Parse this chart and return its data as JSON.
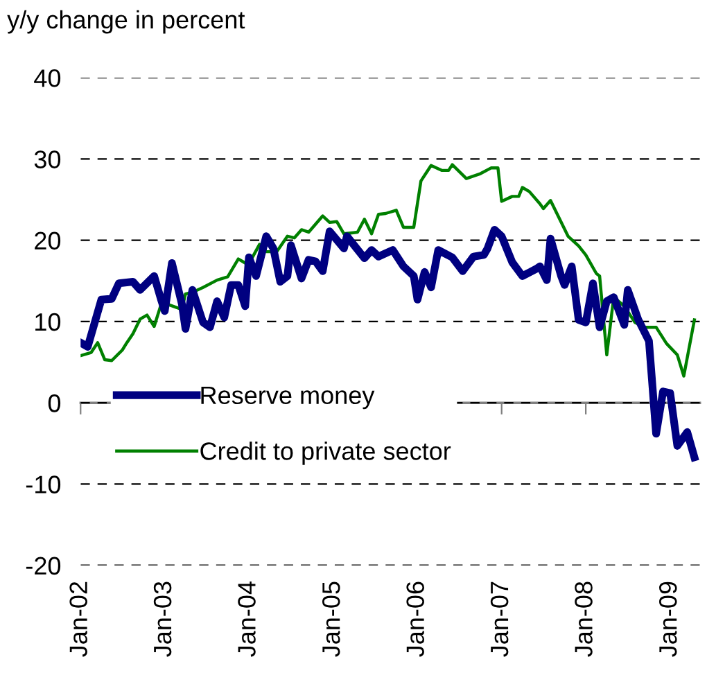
{
  "chart_data": {
    "type": "line",
    "ylabel": "y/y change in percent",
    "xlim": [
      "2002-01-01",
      "2009-05-10"
    ],
    "xticks": [
      {
        "value": "2002-01-01",
        "label": "Jan-02"
      },
      {
        "value": "2003-01-01",
        "label": "Jan-03"
      },
      {
        "value": "2004-01-01",
        "label": "Jan-04"
      },
      {
        "value": "2005-01-01",
        "label": "Jan-05"
      },
      {
        "value": "2006-01-01",
        "label": "Jan-06"
      },
      {
        "value": "2007-01-01",
        "label": "Jan-07"
      },
      {
        "value": "2008-01-01",
        "label": "Jan-08"
      },
      {
        "value": "2009-01-01",
        "label": "Jan-09"
      }
    ],
    "ylim": [
      -20,
      40
    ],
    "yticks": [
      -20,
      -10,
      0,
      10,
      20,
      30,
      40
    ],
    "grid": "y",
    "legend": "bottom left",
    "marker": "none",
    "line_style": "solid",
    "series": [
      {
        "name": "Reserve money",
        "color": "#000080",
        "x": [
          "2002-01-01",
          "2002-02-01",
          "2002-04-01",
          "2002-05-16",
          "2002-06-16",
          "2002-08-16",
          "2002-09-16",
          "2002-11-16",
          "2002-12-16",
          "2003-01-01",
          "2003-02-01",
          "2003-03-16",
          "2003-04-01",
          "2003-05-01",
          "2003-06-16",
          "2003-07-16",
          "2003-08-16",
          "2003-09-16",
          "2003-10-16",
          "2003-11-16",
          "2003-12-16",
          "2004-01-01",
          "2004-02-01",
          "2004-03-16",
          "2004-04-16",
          "2004-05-16",
          "2004-06-16",
          "2004-07-01",
          "2004-08-16",
          "2004-09-16",
          "2004-10-16",
          "2004-11-16",
          "2004-12-16",
          "2005-02-16",
          "2005-03-01",
          "2005-05-16",
          "2005-06-16",
          "2005-07-16",
          "2005-09-16",
          "2005-11-01",
          "2005-12-16",
          "2006-01-01",
          "2006-02-01",
          "2006-03-01",
          "2006-04-01",
          "2006-06-01",
          "2006-07-16",
          "2006-09-01",
          "2006-10-16",
          "2006-11-01",
          "2006-12-01",
          "2007-01-01",
          "2007-02-16",
          "2007-04-01",
          "2007-06-01",
          "2007-06-16",
          "2007-07-16",
          "2007-08-01",
          "2007-09-16",
          "2007-10-01",
          "2007-11-01",
          "2007-12-01",
          "2008-01-01",
          "2008-02-01",
          "2008-03-01",
          "2008-04-01",
          "2008-05-01",
          "2008-06-16",
          "2008-07-01",
          "2008-08-16",
          "2008-10-01",
          "2008-11-01",
          "2008-12-01",
          "2009-01-01",
          "2009-02-01",
          "2009-03-16",
          "2009-04-16"
        ],
        "values": [
          7.4,
          6.9,
          12.7,
          12.8,
          14.7,
          14.9,
          13.9,
          15.6,
          12.7,
          11.3,
          17.2,
          12.2,
          9.1,
          13.9,
          9.9,
          9.3,
          12.5,
          10.5,
          14.5,
          14.5,
          11.9,
          17.9,
          15.6,
          20.5,
          19.0,
          14.9,
          15.6,
          19.4,
          15.3,
          17.6,
          17.4,
          16.2,
          21.1,
          19.0,
          20.5,
          17.8,
          18.8,
          18.0,
          18.8,
          16.8,
          15.6,
          12.7,
          16.1,
          14.2,
          18.8,
          17.9,
          16.2,
          18.0,
          18.2,
          19.0,
          21.3,
          20.5,
          17.3,
          15.6,
          16.5,
          16.8,
          15.1,
          20.2,
          15.6,
          14.5,
          16.8,
          10.2,
          9.9,
          14.7,
          9.3,
          12.5,
          13.0,
          9.6,
          13.9,
          10.2,
          7.6,
          -3.8,
          1.4,
          1.2,
          -5.3,
          -3.6,
          -6.7
        ]
      },
      {
        "name": "Credit to private sector",
        "color": "#008000",
        "x": [
          "2002-01-01",
          "2002-02-16",
          "2002-03-16",
          "2002-04-16",
          "2002-05-16",
          "2002-07-01",
          "2002-07-16",
          "2002-08-16",
          "2002-09-16",
          "2002-10-16",
          "2002-11-16",
          "2002-12-16",
          "2003-01-16",
          "2003-03-16",
          "2003-04-01",
          "2003-05-01",
          "2003-06-16",
          "2003-08-16",
          "2003-10-01",
          "2003-11-16",
          "2003-12-16",
          "2004-01-16",
          "2004-02-16",
          "2004-03-16",
          "2004-05-01",
          "2004-06-16",
          "2004-07-16",
          "2004-08-16",
          "2004-09-16",
          "2004-11-16",
          "2004-12-16",
          "2005-01-16",
          "2005-02-16",
          "2005-04-16",
          "2005-05-16",
          "2005-06-16",
          "2005-07-16",
          "2005-08-16",
          "2005-10-01",
          "2005-11-01",
          "2005-12-16",
          "2006-01-16",
          "2006-03-01",
          "2006-04-16",
          "2006-05-16",
          "2006-06-01",
          "2006-08-01",
          "2006-10-01",
          "2006-11-16",
          "2006-12-16",
          "2007-01-01",
          "2007-02-16",
          "2007-03-16",
          "2007-04-01",
          "2007-05-01",
          "2007-06-16",
          "2007-07-01",
          "2007-08-01",
          "2007-10-16",
          "2007-12-01",
          "2008-01-01",
          "2008-02-16",
          "2008-03-01",
          "2008-04-01",
          "2008-05-01",
          "2008-06-16",
          "2008-08-01",
          "2008-09-16",
          "2008-11-01",
          "2008-12-16",
          "2009-02-01",
          "2009-03-01",
          "2009-04-16"
        ],
        "values": [
          5.8,
          6.2,
          7.4,
          5.3,
          5.2,
          6.5,
          7.2,
          8.5,
          10.3,
          10.8,
          9.4,
          12.1,
          12.1,
          11.5,
          13.4,
          13.6,
          14.2,
          15.1,
          15.5,
          17.7,
          17.2,
          17.9,
          19.5,
          18.6,
          18.6,
          20.5,
          20.3,
          21.3,
          21.0,
          23.0,
          22.2,
          22.3,
          20.8,
          21.0,
          22.6,
          20.8,
          23.2,
          23.3,
          23.7,
          21.6,
          21.6,
          27.3,
          29.2,
          28.6,
          28.6,
          29.3,
          27.6,
          28.2,
          28.9,
          28.9,
          24.8,
          25.4,
          25.4,
          26.5,
          26.0,
          24.5,
          23.9,
          24.9,
          20.5,
          19.3,
          18.2,
          15.9,
          15.6,
          5.9,
          13.0,
          11.9,
          9.9,
          9.3,
          9.3,
          7.3,
          5.9,
          3.3,
          10.2
        ]
      }
    ]
  }
}
